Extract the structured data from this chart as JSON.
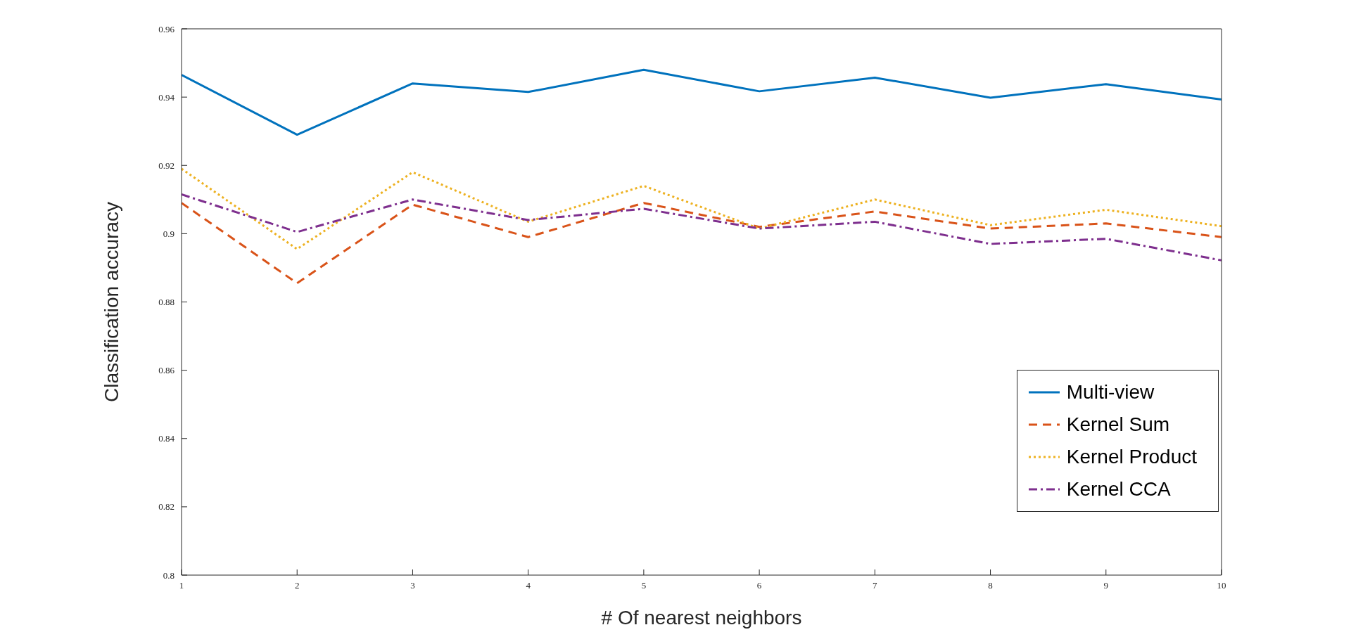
{
  "chart_data": {
    "type": "line",
    "xlabel": "# Of nearest neighbors",
    "ylabel": "Classification accuracy",
    "x": [
      1,
      2,
      3,
      4,
      5,
      6,
      7,
      8,
      9,
      10
    ],
    "xlim": [
      1,
      10
    ],
    "xticks": [
      1,
      2,
      3,
      4,
      5,
      6,
      7,
      8,
      9,
      10
    ],
    "ylim": [
      0.8,
      0.96
    ],
    "yticks": [
      0.8,
      0.82,
      0.84,
      0.86,
      0.88,
      0.9,
      0.92,
      0.94,
      0.96
    ],
    "grid": false,
    "legend": "bottom right",
    "marker": "none",
    "series": [
      {
        "name": "Multi-view",
        "color": "#0072bd",
        "line_style": "solid",
        "values": [
          0.9465,
          0.929,
          0.944,
          0.9415,
          0.948,
          0.9417,
          0.9457,
          0.9398,
          0.9438,
          0.9393
        ]
      },
      {
        "name": "Kernel Sum",
        "color": "#d95319",
        "line_style": "dashed",
        "values": [
          0.909,
          0.8855,
          0.9085,
          0.899,
          0.909,
          0.902,
          0.9065,
          0.9015,
          0.903,
          0.899
        ]
      },
      {
        "name": "Kernel Product",
        "color": "#edb120",
        "line_style": "dotted",
        "values": [
          0.919,
          0.8955,
          0.918,
          0.9035,
          0.914,
          0.9015,
          0.91,
          0.9025,
          0.907,
          0.9022
        ]
      },
      {
        "name": "Kernel CCA",
        "color": "#7e2f8e",
        "line_style": "dashdot",
        "values": [
          0.9115,
          0.9005,
          0.91,
          0.904,
          0.9073,
          0.9015,
          0.9035,
          0.897,
          0.8985,
          0.8922
        ]
      }
    ]
  }
}
